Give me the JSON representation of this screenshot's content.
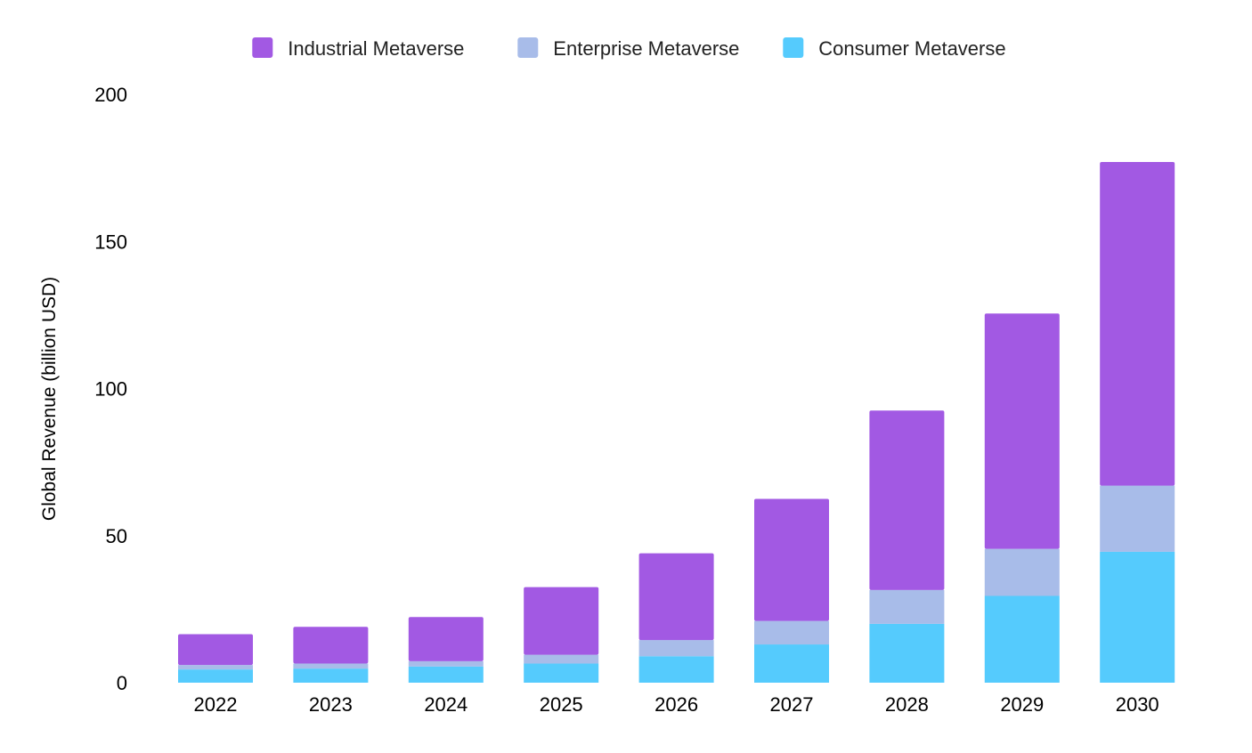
{
  "chart_data": {
    "type": "bar",
    "stacked": true,
    "title": "",
    "xlabel": "",
    "ylabel": "Global Revenue (billion USD)",
    "ylim": [
      0,
      200
    ],
    "yticks": [
      0,
      50,
      100,
      150,
      200
    ],
    "grid": false,
    "legend": "top-center",
    "categories": [
      "2022",
      "2023",
      "2024",
      "2025",
      "2026",
      "2027",
      "2028",
      "2029",
      "2030"
    ],
    "series": [
      {
        "name": "Consumer Metaverse",
        "color": "#55CBFD",
        "values": [
          4.5,
          4.8,
          5.5,
          6.5,
          9,
          13,
          20,
          29.5,
          44.5
        ]
      },
      {
        "name": "Enterprise Metaverse",
        "color": "#A8BCE9",
        "values": [
          1.5,
          1.7,
          1.8,
          3,
          5.5,
          8,
          11.5,
          16,
          22.5
        ]
      },
      {
        "name": "Industrial Metaverse",
        "color": "#A259E3",
        "values": [
          10.5,
          12.5,
          15,
          23,
          29.5,
          41.5,
          61,
          80,
          110
        ]
      }
    ],
    "legend_order": [
      "Industrial Metaverse",
      "Enterprise Metaverse",
      "Consumer Metaverse"
    ]
  }
}
